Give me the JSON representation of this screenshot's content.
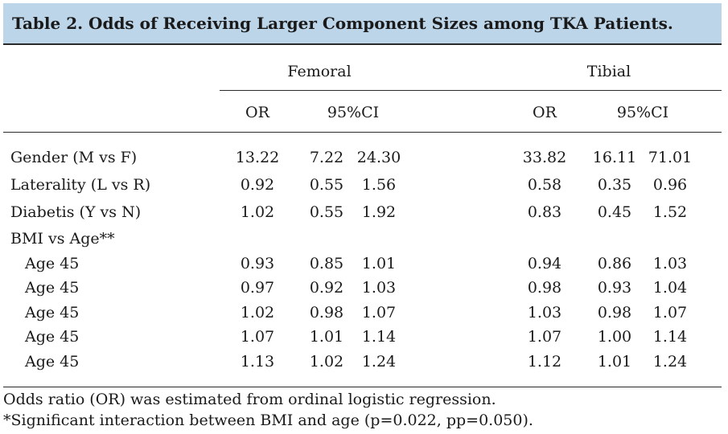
{
  "title": "Table 2. Odds of Receiving Larger Component Sizes among TKA Patients.",
  "groups": [
    "Femoral",
    "Tibial"
  ],
  "subheaders": {
    "or": "OR",
    "ci": "95%CI"
  },
  "rows": [
    {
      "label": "Gender  (M  vs  F)",
      "indent": false,
      "values": [
        "13.22",
        "7.22",
        "24.30",
        "33.82",
        "16.11",
        "71.01"
      ]
    },
    {
      "label": "Laterality  (L  vs  R)",
      "indent": false,
      "values": [
        "0.92",
        "0.55",
        "1.56",
        "0.58",
        "0.35",
        "0.96"
      ]
    },
    {
      "label": "Diabetis  (Y  vs  N)",
      "indent": false,
      "values": [
        "1.02",
        "0.55",
        "1.92",
        "0.83",
        "0.45",
        "1.52"
      ]
    },
    {
      "label": "BMI vs Age**",
      "indent": false,
      "values": []
    },
    {
      "label": "Age 45",
      "indent": true,
      "values": [
        "0.93",
        "0.85",
        "1.01",
        "0.94",
        "0.86",
        "1.03"
      ]
    },
    {
      "label": "Age 45",
      "indent": true,
      "values": [
        "0.97",
        "0.92",
        "1.03",
        "0.98",
        "0.93",
        "1.04"
      ]
    },
    {
      "label": "Age 45",
      "indent": true,
      "values": [
        "1.02",
        "0.98",
        "1.07",
        "1.03",
        "0.98",
        "1.07"
      ]
    },
    {
      "label": "Age 45",
      "indent": true,
      "values": [
        "1.07",
        "1.01",
        "1.14",
        "1.07",
        "1.00",
        "1.14"
      ]
    },
    {
      "label": "Age 45",
      "indent": true,
      "values": [
        "1.13",
        "1.02",
        "1.24",
        "1.12",
        "1.01",
        "1.24"
      ]
    }
  ],
  "footnotes": [
    "Odds ratio (OR) was estimated from ordinal logistic regression.",
    "*Significant interaction between BMI and age (p=0.022, pp=0.050)."
  ]
}
